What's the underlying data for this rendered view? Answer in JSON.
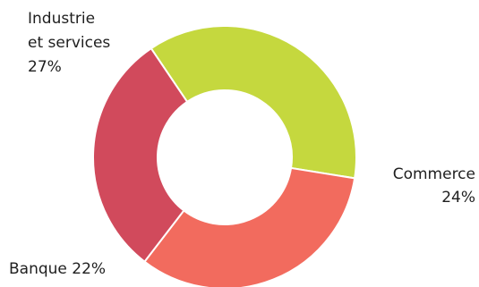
{
  "chart_data": {
    "type": "pie",
    "variant": "donut",
    "slices": [
      {
        "label_lines": [
          "Industrie",
          "et services"
        ],
        "value_text": "27%",
        "value": 27,
        "color": "#c5d83e"
      },
      {
        "label_lines": [
          "Commerce"
        ],
        "value_text": "24%",
        "value": 24,
        "color": "#f26b5e"
      },
      {
        "label_lines": [
          "Banque 22%"
        ],
        "value_text": "",
        "value": 22,
        "color": "#d14a5c"
      }
    ]
  }
}
